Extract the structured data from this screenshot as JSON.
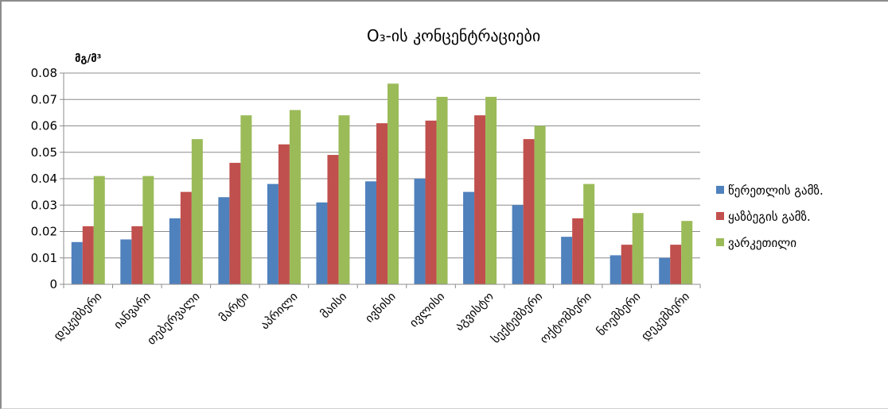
{
  "chart_data": {
    "type": "bar",
    "title": "O₃-ის კონცენტრაციები",
    "ylabel": "მგ/მ³",
    "xlabel": "",
    "ylim": [
      0,
      0.08
    ],
    "yticks": [
      "0",
      "0.01",
      "0.02",
      "0.03",
      "0.04",
      "0.05",
      "0.06",
      "0.07",
      "0.08"
    ],
    "grid": true,
    "legend_position": "right",
    "categories": [
      "დეკემბერი",
      "იანვარი",
      "თებერვალი",
      "მარტი",
      "აპრილი",
      "მაისი",
      "ივნისი",
      "ივლისი",
      "აგვისტო",
      "სექტემბერი",
      "ოქტომბერი",
      "ნოემბერი",
      "დეკემბერი"
    ],
    "series": [
      {
        "name": "წერეთლის გამზ.",
        "color": "#4f81bd",
        "values": [
          0.016,
          0.017,
          0.025,
          0.033,
          0.038,
          0.031,
          0.039,
          0.04,
          0.035,
          0.03,
          0.018,
          0.011,
          0.01
        ]
      },
      {
        "name": "ყაზბეგის გამზ.",
        "color": "#c0504d",
        "values": [
          0.022,
          0.022,
          0.035,
          0.046,
          0.053,
          0.049,
          0.061,
          0.062,
          0.064,
          0.055,
          0.025,
          0.015,
          0.015
        ]
      },
      {
        "name": "ვარკეთილი",
        "color": "#9bbb59",
        "values": [
          0.041,
          0.041,
          0.055,
          0.064,
          0.066,
          0.064,
          0.076,
          0.071,
          0.071,
          0.06,
          0.038,
          0.027,
          0.024
        ]
      }
    ]
  }
}
